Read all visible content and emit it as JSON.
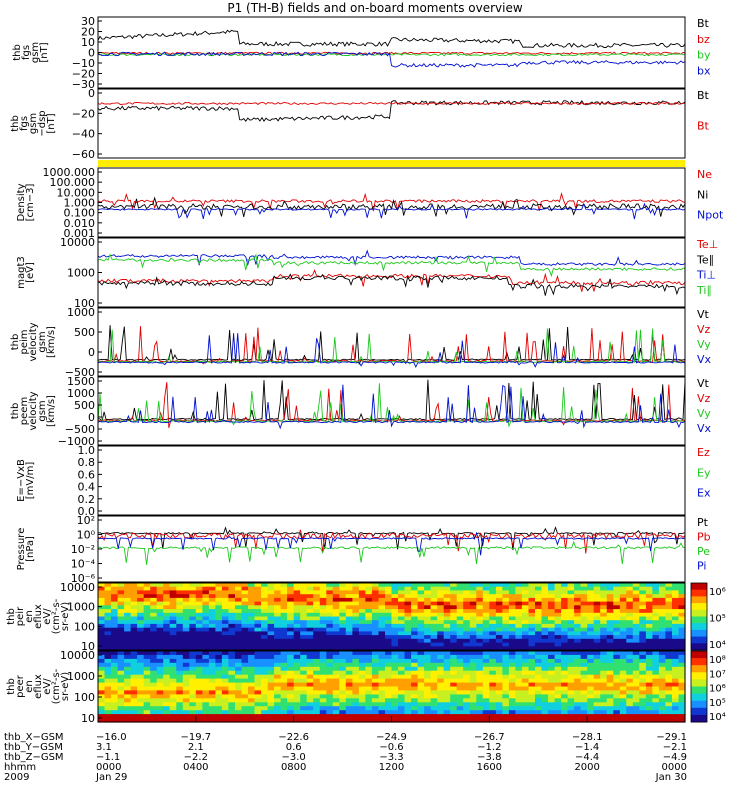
{
  "colors": {
    "black": "#000000",
    "red": "#e00000",
    "green": "#1ec81e",
    "blue": "#0010d0",
    "yellow": "#ffee00"
  },
  "header": {
    "title": "P1 (TH-B) fields and on-board moments overview"
  },
  "chart_data": [
    {
      "type": "line",
      "panel": "fgs-gsm",
      "ylabel": [
        "thb",
        "fgs",
        "gsm",
        "[nT]"
      ],
      "yticks": [
        "30",
        "20",
        "10",
        "0",
        "−10",
        "−20",
        "−30"
      ],
      "series": [
        {
          "name": "Bt",
          "color": "black"
        },
        {
          "name": "bz",
          "color": "red"
        },
        {
          "name": "by",
          "color": "green"
        },
        {
          "name": "bx",
          "color": "blue"
        }
      ]
    },
    {
      "type": "line",
      "panel": "fgs-dsl",
      "ylabel": [
        "thb",
        "fgs",
        "gsm",
        "−dsp",
        "[nT]"
      ],
      "yticks": [
        "0",
        "−20",
        "−40",
        "−60"
      ],
      "series": [
        {
          "name": "Bt",
          "color": "black"
        },
        {
          "name": "Bt",
          "color": "red"
        }
      ]
    },
    {
      "type": "line",
      "panel": "density",
      "ylabel": [
        "Density",
        "[cm−3]"
      ],
      "scale": "log",
      "yticks": [
        "1000.000",
        "100.000",
        "10.000",
        "1.000",
        "0.100",
        "0.010",
        "0.001"
      ],
      "series": [
        {
          "name": "Ne",
          "color": "red"
        },
        {
          "name": "Ni",
          "color": "black"
        },
        {
          "name": "Npot",
          "color": "blue"
        }
      ]
    },
    {
      "type": "line",
      "panel": "temperature",
      "ylabel": [
        "magt3",
        "[eV]"
      ],
      "scale": "log",
      "yticks": [
        "10000",
        "1000",
        "100"
      ],
      "series": [
        {
          "name": "Te⊥",
          "color": "red"
        },
        {
          "name": "Te∥",
          "color": "black"
        },
        {
          "name": "Ti⊥",
          "color": "blue"
        },
        {
          "name": "Ti∥",
          "color": "green"
        }
      ]
    },
    {
      "type": "line",
      "panel": "ion-velocity",
      "ylabel": [
        "thb",
        "peim",
        "velocity",
        "gsm",
        "[km/s]"
      ],
      "yticks": [
        "1000",
        "500",
        "0",
        "−500"
      ],
      "series": [
        {
          "name": "Vt",
          "color": "black"
        },
        {
          "name": "Vz",
          "color": "red"
        },
        {
          "name": "Vy",
          "color": "green"
        },
        {
          "name": "Vx",
          "color": "blue"
        }
      ]
    },
    {
      "type": "line",
      "panel": "electron-velocity",
      "ylabel": [
        "thb",
        "peem",
        "velocity",
        "gsm",
        "[km/s]"
      ],
      "yticks": [
        "1500",
        "1000",
        "500",
        "0",
        "−500",
        "−1000"
      ],
      "series": [
        {
          "name": "Vt",
          "color": "black"
        },
        {
          "name": "Vz",
          "color": "red"
        },
        {
          "name": "Vy",
          "color": "green"
        },
        {
          "name": "Vx",
          "color": "blue"
        }
      ]
    },
    {
      "type": "line",
      "panel": "efield",
      "ylabel": [
        "E=−VxB",
        "[mV/m]"
      ],
      "yticks": [
        "1.0",
        "0.8",
        "0.6",
        "0.4",
        "0.2",
        "0.0"
      ],
      "series": [
        {
          "name": "Ez",
          "color": "red"
        },
        {
          "name": "Ey",
          "color": "green"
        },
        {
          "name": "Ex",
          "color": "blue"
        }
      ]
    },
    {
      "type": "line",
      "panel": "pressure",
      "ylabel": [
        "Pressure",
        "[nPa]"
      ],
      "scale": "log",
      "yticks": [
        "10²",
        "10⁰",
        "10⁻²",
        "10⁻⁴",
        "10⁻⁶"
      ],
      "series": [
        {
          "name": "Pt",
          "color": "black"
        },
        {
          "name": "Pb",
          "color": "red"
        },
        {
          "name": "Pe",
          "color": "green"
        },
        {
          "name": "Pi",
          "color": "blue"
        }
      ]
    },
    {
      "type": "heatmap",
      "panel": "ion-spectrogram",
      "ylabel": [
        "thb",
        "peir",
        "en",
        "eflux",
        "eV/",
        "(cm²-s-",
        "sr-eV)"
      ],
      "yticks": [
        "10000",
        "1000",
        "100",
        "10"
      ],
      "colorbar": [
        "10⁶",
        "10⁵",
        "10⁴"
      ]
    },
    {
      "type": "heatmap",
      "panel": "electron-spectrogram",
      "ylabel": [
        "thb",
        "peer",
        "en",
        "eflux",
        "eV/",
        "(cm²-s-",
        "sr-eV)"
      ],
      "yticks": [
        "10000",
        "1000",
        "100",
        "10"
      ],
      "colorbar": [
        "10⁸",
        "10⁷",
        "10⁶",
        "10⁵",
        "10⁴"
      ]
    }
  ],
  "xaxis": {
    "rows": [
      {
        "label": "thb_X−GSM",
        "values": [
          "−16.0",
          "−19.7",
          "−22.6",
          "−24.9",
          "−26.7",
          "−28.1",
          "−29.1"
        ]
      },
      {
        "label": "thb_Y−GSM",
        "values": [
          "3.1",
          "2.1",
          "0.6",
          "−0.6",
          "−1.2",
          "−1.4",
          "−2.1"
        ]
      },
      {
        "label": "thb_Z−GSM",
        "values": [
          "−1.1",
          "−2.2",
          "−3.0",
          "−3.3",
          "−3.8",
          "−4.4",
          "−4.9"
        ]
      },
      {
        "label": "hhmm",
        "values": [
          "0000",
          "0400",
          "0800",
          "1200",
          "1600",
          "2000",
          "0000"
        ]
      },
      {
        "label": "2009",
        "values": [
          "Jan 29",
          "",
          "",
          "",
          "",
          "",
          "Jan 30"
        ]
      }
    ]
  }
}
